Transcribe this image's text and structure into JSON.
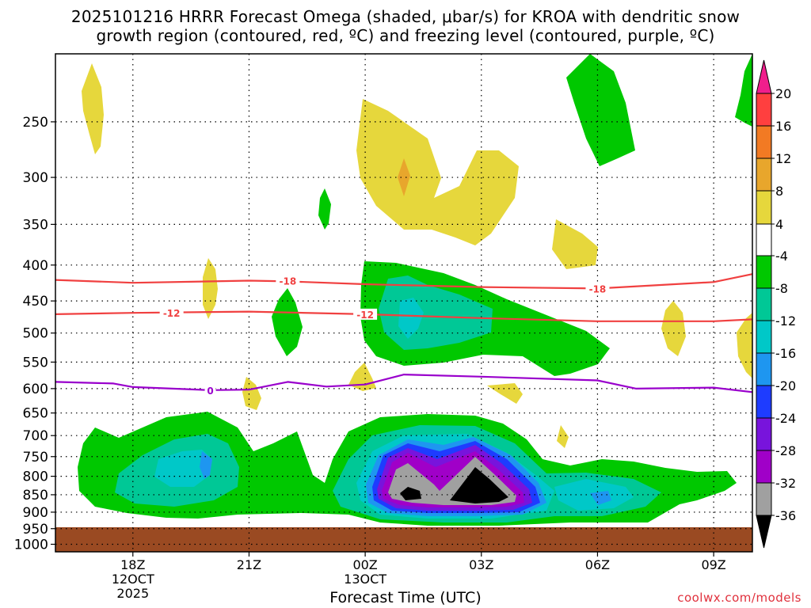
{
  "chart_data": {
    "type": "contour",
    "title_line1": "2025101216 HRRR Forecast Omega (shaded, μbar/s) for KROA with dendritic snow",
    "title_line2": "growth region (contoured, red, ºC) and freezing level (contoured, purple, ºC)",
    "xlabel": "Forecast Time (UTC)",
    "x_ticks": [
      {
        "hour": 18,
        "label": "18Z",
        "date": "12OCT",
        "year": "2025"
      },
      {
        "hour": 21,
        "label": "21Z",
        "date": "",
        "year": ""
      },
      {
        "hour": 24,
        "label": "00Z",
        "date": "13OCT",
        "year": ""
      },
      {
        "hour": 27,
        "label": "03Z",
        "date": "",
        "year": ""
      },
      {
        "hour": 30,
        "label": "06Z",
        "date": "",
        "year": ""
      },
      {
        "hour": 33,
        "label": "09Z",
        "date": "",
        "year": ""
      }
    ],
    "x_range": [
      16,
      34
    ],
    "y_ticks": [
      250,
      300,
      350,
      400,
      450,
      500,
      550,
      600,
      650,
      700,
      750,
      800,
      850,
      900,
      950,
      1000
    ],
    "y_range": [
      200,
      1025
    ],
    "y_scale": "pressure (log, inverted)",
    "grid": true,
    "colorbar": {
      "labels": [
        "20",
        "16",
        "12",
        "8",
        "4",
        "-4",
        "-8",
        "-12",
        "-16",
        "-20",
        "-24",
        "-28",
        "-32",
        "-36"
      ],
      "colors": [
        "#ff3f3f",
        "#f27a23",
        "#e8a62c",
        "#e6d73c",
        "#ffffff",
        "#00c800",
        "#00c896",
        "#00c8c8",
        "#1e96f0",
        "#1e3cff",
        "#7814dc",
        "#a000c8",
        "#a0a0a0",
        "#000000"
      ],
      "top_arrow": "#f01e8c",
      "bottom_arrow": "#000000"
    },
    "contours": [
      {
        "label": "-18",
        "color": "#f04040",
        "points": [
          [
            16,
            420
          ],
          [
            18,
            424
          ],
          [
            21,
            421
          ],
          [
            22,
            422
          ],
          [
            24,
            426
          ],
          [
            27,
            430
          ],
          [
            30,
            432
          ],
          [
            33,
            423
          ],
          [
            34,
            412
          ]
        ],
        "label_at": [
          22,
          421
        ]
      },
      {
        "label": "-18",
        "color": "#f04040",
        "points": [],
        "label_at": [
          30,
          432
        ]
      },
      {
        "label": "-12",
        "color": "#f04040",
        "points": [
          [
            16,
            470
          ],
          [
            18,
            468
          ],
          [
            21,
            466
          ],
          [
            24,
            470
          ],
          [
            27,
            476
          ],
          [
            30,
            481
          ],
          [
            33,
            481
          ],
          [
            34,
            478
          ]
        ],
        "label_at": [
          19,
          468
        ]
      },
      {
        "label": "-12",
        "color": "#f04040",
        "points": [],
        "label_at": [
          24,
          470
        ]
      },
      {
        "label": "0",
        "color": "#9900cc",
        "points": [
          [
            16,
            587
          ],
          [
            17.5,
            590
          ],
          [
            18,
            597
          ],
          [
            20,
            603
          ],
          [
            21,
            602
          ],
          [
            22,
            587
          ],
          [
            23,
            596
          ],
          [
            24,
            592
          ],
          [
            25,
            573
          ],
          [
            27,
            577
          ],
          [
            30,
            584
          ],
          [
            31,
            600
          ],
          [
            33,
            598
          ],
          [
            34,
            607
          ]
        ],
        "label_at": [
          20,
          603
        ]
      }
    ]
  },
  "credit": "coolwx.com/models"
}
